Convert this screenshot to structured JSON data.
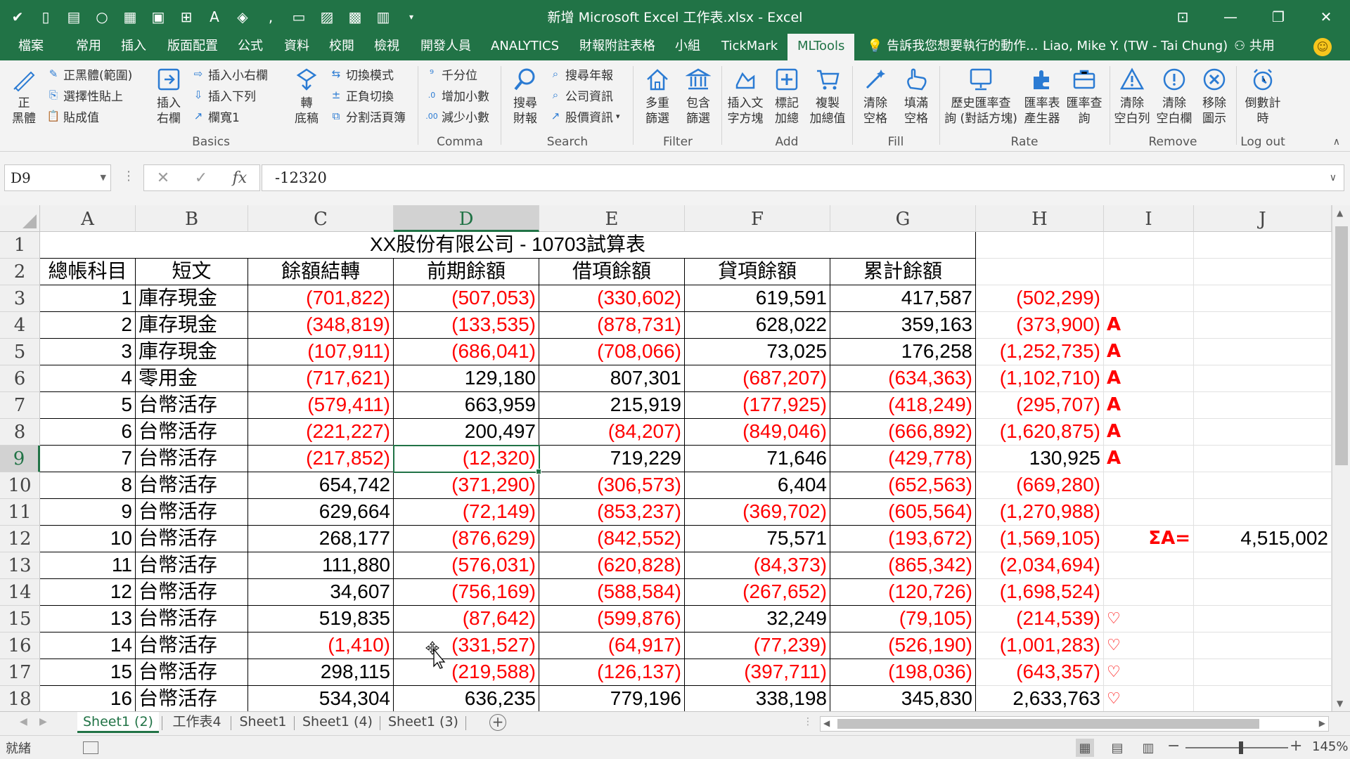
{
  "window": {
    "title": "新增 Microsoft Excel 工作表.xlsx - Excel"
  },
  "tabs": [
    "檔案",
    "常用",
    "插入",
    "版面配置",
    "公式",
    "資料",
    "校閱",
    "檢視",
    "開發人員",
    "ANALYTICS",
    "財報附註表格",
    "小組",
    "TickMark",
    "MLTools"
  ],
  "tell_me": "告訴我您想要執行的動作...",
  "user": "Liao, Mike Y. (TW - Tai Chung)",
  "share": "共用",
  "ribbon": {
    "big_zheng": "正\n黑體",
    "basics_small": [
      "正黑體(範圍)",
      "選擇性貼上",
      "貼成值"
    ],
    "insert_right": "插入\n右欄",
    "basics_small2": [
      "插入小右欄",
      "插入下列",
      "欄寬1"
    ],
    "zhuan": "轉\n底稿",
    "basics_small3": [
      "切換模式",
      "正負切換",
      "分割活頁簿"
    ],
    "group_basics": "Basics",
    "comma_small": [
      "千分位",
      "增加小數",
      "減少小數"
    ],
    "group_comma": "Comma",
    "search_big": "搜尋\n財報",
    "search_small": [
      "搜尋年報",
      "公司資訊",
      "股價資訊"
    ],
    "group_search": "Search",
    "filter_btns": [
      "多重\n篩選",
      "包含\n篩選"
    ],
    "group_filter": "Filter",
    "add_btns": [
      "插入文\n字方塊",
      "標記\n加總",
      "複製\n加總值"
    ],
    "group_add": "Add",
    "fill_btns": [
      "清除\n空格",
      "填滿\n空格"
    ],
    "group_fill": "Fill",
    "rate_btns": [
      "歷史匯率查\n詢 (對話方塊)",
      "匯率表\n產生器",
      "匯率查\n詢"
    ],
    "group_rate": "Rate",
    "remove_btns": [
      "清除\n空白列",
      "清除\n空白欄",
      "移除\n圖示"
    ],
    "group_remove": "Remove",
    "logout_btn": "倒數計\n時",
    "group_logout": "Log out"
  },
  "formula_bar": {
    "name_box": "D9",
    "formula": "-12320"
  },
  "columns": [
    "A",
    "B",
    "C",
    "D",
    "E",
    "F",
    "G",
    "H",
    "I",
    "J"
  ],
  "sheet": {
    "title": "XX股份有限公司 - 10703試算表",
    "headers": [
      "總帳科目",
      "短文",
      "餘額結轉",
      "前期餘額",
      "借項餘額",
      "貸項餘額",
      "累計餘額"
    ],
    "rows": [
      {
        "n": "3",
        "a": "1",
        "b": "庫存現金",
        "c": "(701,822)",
        "d": "(507,053)",
        "e": "(330,602)",
        "f": "619,591",
        "g": "417,587",
        "h": "(502,299)",
        "i": ""
      },
      {
        "n": "4",
        "a": "2",
        "b": "庫存現金",
        "c": "(348,819)",
        "d": "(133,535)",
        "e": "(878,731)",
        "f": "628,022",
        "g": "359,163",
        "h": "(373,900)",
        "i": "A"
      },
      {
        "n": "5",
        "a": "3",
        "b": "庫存現金",
        "c": "(107,911)",
        "d": "(686,041)",
        "e": "(708,066)",
        "f": "73,025",
        "g": "176,258",
        "h": "(1,252,735)",
        "i": "A"
      },
      {
        "n": "6",
        "a": "4",
        "b": "零用金",
        "c": "(717,621)",
        "d": "129,180",
        "e": "807,301",
        "f": "(687,207)",
        "g": "(634,363)",
        "h": "(1,102,710)",
        "i": "A"
      },
      {
        "n": "7",
        "a": "5",
        "b": "台幣活存",
        "c": "(579,411)",
        "d": "663,959",
        "e": "215,919",
        "f": "(177,925)",
        "g": "(418,249)",
        "h": "(295,707)",
        "i": "A"
      },
      {
        "n": "8",
        "a": "6",
        "b": "台幣活存",
        "c": "(221,227)",
        "d": "200,497",
        "e": "(84,207)",
        "f": "(849,046)",
        "g": "(666,892)",
        "h": "(1,620,875)",
        "i": "A"
      },
      {
        "n": "9",
        "a": "7",
        "b": "台幣活存",
        "c": "(217,852)",
        "d": "(12,320)",
        "e": "719,229",
        "f": "71,646",
        "g": "(429,778)",
        "h": "130,925",
        "i": "A"
      },
      {
        "n": "10",
        "a": "8",
        "b": "台幣活存",
        "c": "654,742",
        "d": "(371,290)",
        "e": "(306,573)",
        "f": "6,404",
        "g": "(652,563)",
        "h": "(669,280)",
        "i": ""
      },
      {
        "n": "11",
        "a": "9",
        "b": "台幣活存",
        "c": "629,664",
        "d": "(72,149)",
        "e": "(853,237)",
        "f": "(369,702)",
        "g": "(605,564)",
        "h": "(1,270,988)",
        "i": ""
      },
      {
        "n": "12",
        "a": "10",
        "b": "台幣活存",
        "c": "268,177",
        "d": "(876,629)",
        "e": "(842,552)",
        "f": "75,571",
        "g": "(193,672)",
        "h": "(1,569,105)",
        "i": ""
      },
      {
        "n": "13",
        "a": "11",
        "b": "台幣活存",
        "c": "111,880",
        "d": "(576,031)",
        "e": "(620,828)",
        "f": "(84,373)",
        "g": "(865,342)",
        "h": "(2,034,694)",
        "i": ""
      },
      {
        "n": "14",
        "a": "12",
        "b": "台幣活存",
        "c": "34,607",
        "d": "(756,169)",
        "e": "(588,584)",
        "f": "(267,652)",
        "g": "(120,726)",
        "h": "(1,698,524)",
        "i": ""
      },
      {
        "n": "15",
        "a": "13",
        "b": "台幣活存",
        "c": "519,835",
        "d": "(87,642)",
        "e": "(599,876)",
        "f": "32,249",
        "g": "(79,105)",
        "h": "(214,539)",
        "i": "♡"
      },
      {
        "n": "16",
        "a": "14",
        "b": "台幣活存",
        "c": "(1,410)",
        "d": "(331,527)",
        "e": "(64,917)",
        "f": "(77,239)",
        "g": "(526,190)",
        "h": "(1,001,283)",
        "i": "♡"
      },
      {
        "n": "17",
        "a": "15",
        "b": "台幣活存",
        "c": "298,115",
        "d": "(219,588)",
        "e": "(126,137)",
        "f": "(397,711)",
        "g": "(198,036)",
        "h": "(643,357)",
        "i": "♡"
      },
      {
        "n": "18",
        "a": "16",
        "b": "台幣活存",
        "c": "534,304",
        "d": "636,235",
        "e": "779,196",
        "f": "338,198",
        "g": "345,830",
        "h": "2,633,763",
        "i": "♡"
      }
    ],
    "sum_label": "ΣA=",
    "sum_value": "4,515,002"
  },
  "sheet_tabs": [
    "Sheet1 (2)",
    "工作表4",
    "Sheet1",
    "Sheet1 (4)",
    "Sheet1 (3)"
  ],
  "status": {
    "text": "就緒",
    "zoom": "145%"
  },
  "colors": {
    "excel_green": "#217346",
    "negative": "#ff0000"
  }
}
